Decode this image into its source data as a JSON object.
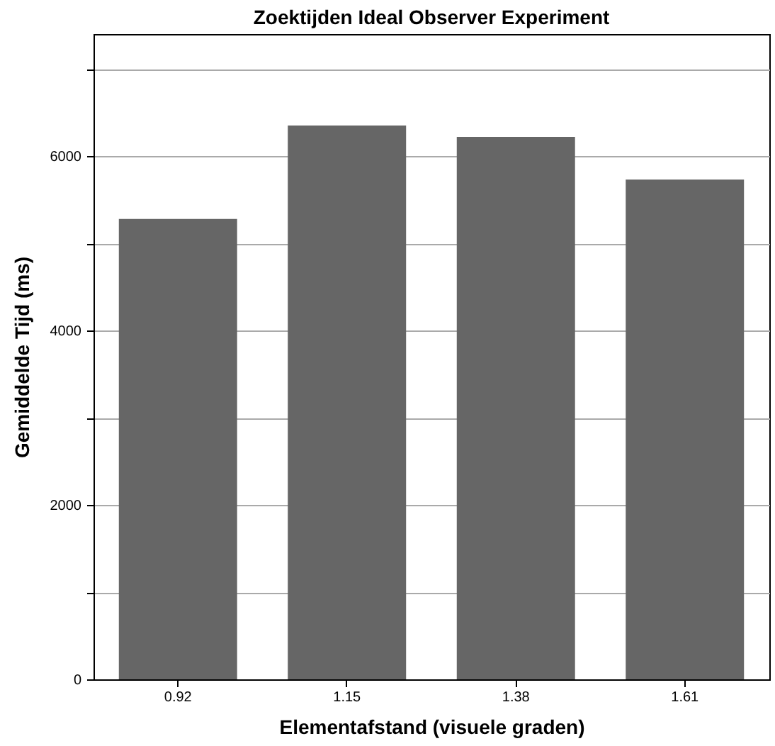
{
  "chart_data": {
    "type": "bar",
    "title": "Zoektijden Ideal Observer Experiment",
    "xlabel": "Elementafstand (visuele graden)",
    "ylabel": "Gemiddelde Tijd (ms)",
    "categories": [
      "0.92",
      "1.15",
      "1.38",
      "1.61"
    ],
    "series": [
      {
        "color": "#666666",
        "values": [
          5280,
          6350,
          6220,
          5730
        ]
      }
    ],
    "ylim": [
      0,
      7400
    ],
    "yticks": [
      0,
      {
        "value": 1000,
        "label": null
      },
      2000,
      {
        "value": 3000,
        "label": null
      },
      4000,
      {
        "value": 5000,
        "label": null
      },
      6000,
      {
        "value": 7000,
        "label": null
      }
    ],
    "grid": "y",
    "legend": false
  }
}
